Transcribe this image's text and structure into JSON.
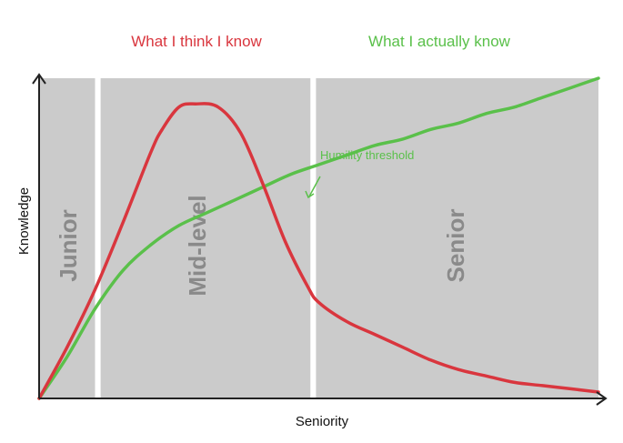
{
  "chart_data": {
    "type": "line",
    "title": "",
    "xlabel": "Seniority",
    "ylabel": "Knowledge",
    "xlim": [
      0,
      100
    ],
    "ylim": [
      0,
      100
    ],
    "grid": false,
    "legend": {
      "placement": "top"
    },
    "regions": [
      {
        "label": "Junior",
        "x_range": [
          0,
          10
        ]
      },
      {
        "label": "Mid-level",
        "x_range": [
          11,
          48.5
        ]
      },
      {
        "label": "Senior",
        "x_range": [
          49.5,
          100
        ]
      }
    ],
    "series": [
      {
        "name": "What I think I know",
        "color": "#d9363e",
        "x": [
          0,
          5,
          10,
          15,
          20,
          22,
          25,
          28,
          32,
          36,
          40,
          44,
          48,
          50,
          55,
          60,
          65,
          70,
          75,
          80,
          85,
          90,
          95,
          100
        ],
        "y": [
          0,
          16,
          34,
          55,
          77,
          84,
          91,
          92,
          91,
          83,
          67,
          49,
          35,
          30,
          24,
          20,
          16,
          12,
          9,
          7,
          5,
          4,
          3,
          2
        ]
      },
      {
        "name": "What I actually know",
        "color": "#5ac04a",
        "x": [
          0,
          5,
          10,
          15,
          20,
          25,
          30,
          35,
          40,
          45,
          50,
          55,
          60,
          65,
          70,
          75,
          80,
          85,
          90,
          95,
          100
        ],
        "y": [
          0,
          13,
          28,
          40,
          48,
          54,
          58,
          62,
          66,
          70,
          73,
          76,
          79,
          81,
          84,
          86,
          89,
          91,
          94,
          97,
          100
        ]
      }
    ],
    "annotations": [
      {
        "text": "Humility threshold",
        "x": 48.5,
        "y": 72,
        "color": "#5ac04a"
      }
    ]
  }
}
